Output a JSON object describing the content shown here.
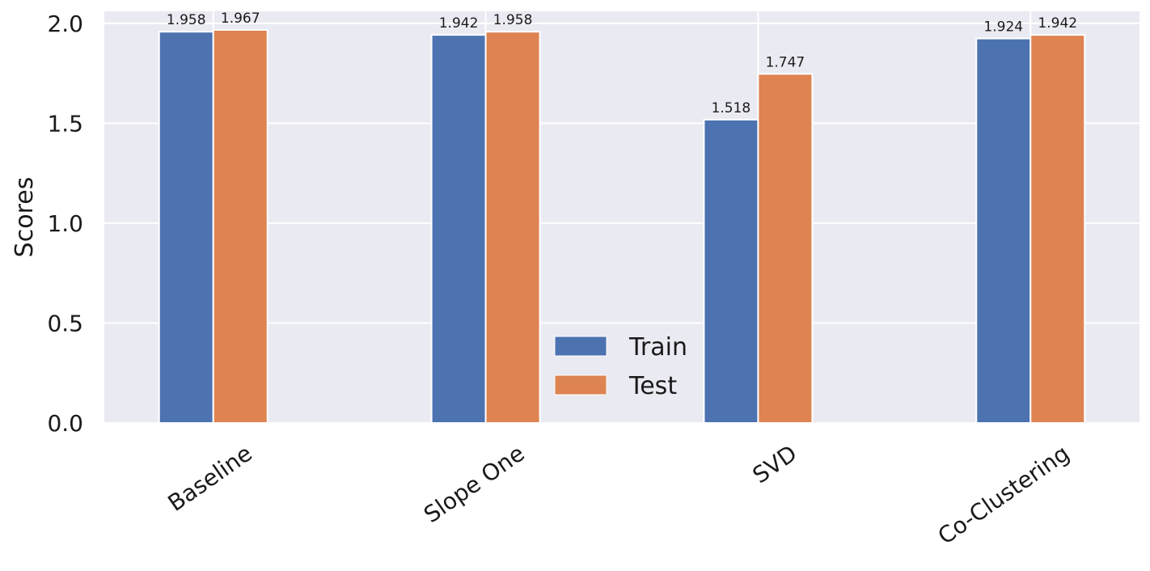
{
  "chart_data": {
    "type": "bar",
    "categories": [
      "Baseline",
      "Slope One",
      "SVD",
      "Co-Clustering"
    ],
    "series": [
      {
        "name": "Train",
        "values": [
          1.958,
          1.942,
          1.518,
          1.924
        ],
        "color": "#4c72b0"
      },
      {
        "name": "Test",
        "values": [
          1.967,
          1.958,
          1.747,
          1.942
        ],
        "color": "#dd8452"
      }
    ],
    "data_labels": [
      [
        "1.958",
        "1.942",
        "1.518",
        "1.924"
      ],
      [
        "1.967",
        "1.958",
        "1.747",
        "1.942"
      ]
    ],
    "title": "",
    "xlabel": "",
    "ylabel": "Scores",
    "ylim": [
      0,
      2.06
    ],
    "yticks": [
      0.0,
      0.5,
      1.0,
      1.5,
      2.0
    ],
    "ytick_labels": [
      "0.0",
      "0.5",
      "1.0",
      "1.5",
      "2.0"
    ],
    "grid": true,
    "legend_position": "lower-center",
    "background_color": "#eaeaf2",
    "grid_color": "#ffffff"
  }
}
